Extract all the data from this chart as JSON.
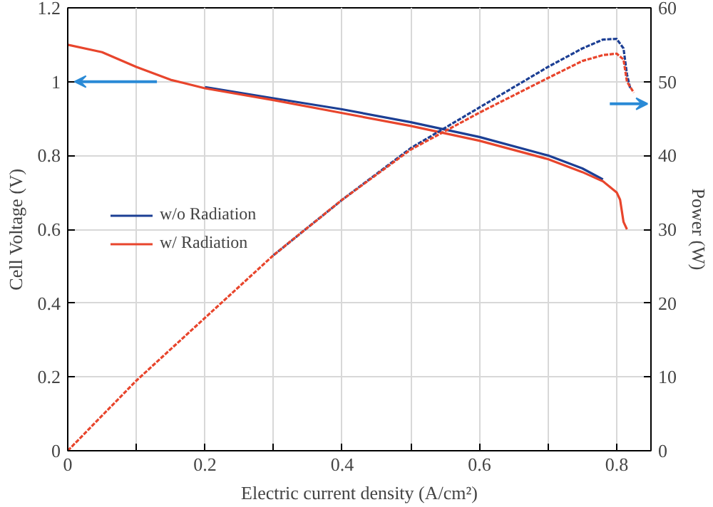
{
  "chart_data": {
    "type": "line",
    "xlabel": "Electric current density (A/cm²)",
    "ylabel": "Cell Voltage (V)",
    "y2label": "Power (W)",
    "xlim": [
      0,
      0.85
    ],
    "ylim": [
      0,
      1.2
    ],
    "y2lim": [
      0,
      60
    ],
    "xticks": [
      0,
      {
        "value": 0.1,
        "label": null
      },
      0.2,
      {
        "value": 0.3,
        "label": null
      },
      0.4,
      {
        "value": 0.5,
        "label": null
      },
      0.6,
      {
        "value": 0.7,
        "label": null
      },
      0.8
    ],
    "yticks": [
      0,
      0.2,
      0.4,
      0.6,
      0.8,
      1,
      1.2
    ],
    "y2ticks": [
      0,
      10,
      20,
      30,
      40,
      50,
      60
    ],
    "grid": true,
    "legend": "left",
    "marker": "none",
    "series": [
      {
        "name": "w/o Radiation",
        "color": "#1c3f94",
        "line_style": "solid",
        "x": [
          0.2,
          0.3,
          0.4,
          0.5,
          0.6,
          0.7,
          0.75,
          0.78
        ],
        "values": [
          0.985,
          0.955,
          0.925,
          0.89,
          0.85,
          0.8,
          0.765,
          0.735
        ]
      },
      {
        "name": "w/ Radiation",
        "color": "#e8452c",
        "line_style": "solid",
        "x": [
          0,
          0.05,
          0.1,
          0.15,
          0.2,
          0.3,
          0.4,
          0.5,
          0.6,
          0.7,
          0.75,
          0.78,
          0.8,
          0.805,
          0.81,
          0.815
        ],
        "values": [
          1.1,
          1.08,
          1.04,
          1.005,
          0.982,
          0.95,
          0.915,
          0.88,
          0.84,
          0.79,
          0.755,
          0.73,
          0.7,
          0.68,
          0.62,
          0.6
        ]
      },
      {
        "color": "#1c3f94",
        "line_style": "dashed",
        "axis": "y2",
        "x": [
          0.3,
          0.4,
          0.5,
          0.6,
          0.7,
          0.75,
          0.78,
          0.8,
          0.81,
          0.815,
          0.82
        ],
        "values": [
          26.5,
          34,
          41,
          46.5,
          52,
          54.5,
          55.7,
          55.8,
          54.5,
          51,
          49
        ]
      },
      {
        "color": "#e8452c",
        "line_style": "dashed",
        "axis": "y2",
        "x": [
          0,
          0.1,
          0.2,
          0.3,
          0.4,
          0.5,
          0.6,
          0.7,
          0.75,
          0.78,
          0.8,
          0.81,
          0.815,
          0.825
        ],
        "values": [
          0,
          9.5,
          18,
          26.5,
          34,
          40.8,
          45.8,
          50.5,
          52.8,
          53.6,
          53.8,
          53,
          50,
          48.5
        ]
      }
    ]
  }
}
